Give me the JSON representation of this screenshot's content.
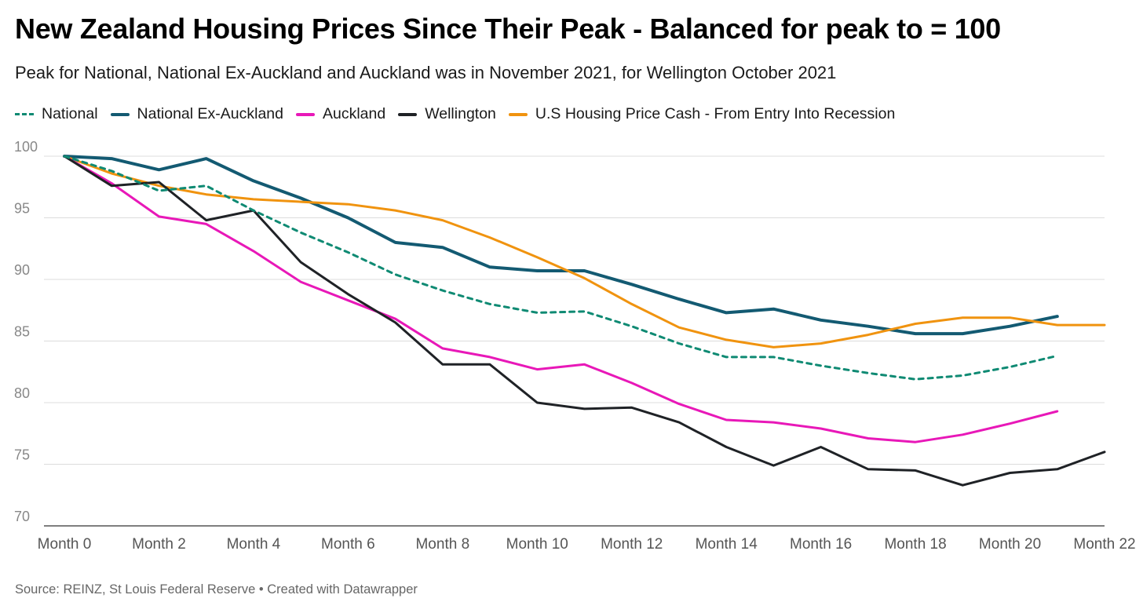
{
  "title": "New Zealand Housing Prices Since Their Peak - Balanced for peak to = 100",
  "subtitle": "Peak for National, National Ex-Auckland and Auckland was in November 2021, for Wellington October 2021",
  "source": "Source: REINZ, St Louis Federal Reserve • Created with Datawrapper",
  "chart_data": {
    "type": "line",
    "ylim": [
      70,
      100
    ],
    "xlim": [
      0,
      22
    ],
    "y_ticks": [
      100,
      95,
      90,
      85,
      80,
      75,
      70
    ],
    "x_ticks": [
      {
        "x": 0,
        "label": "Month 0"
      },
      {
        "x": 2,
        "label": "Month 2"
      },
      {
        "x": 4,
        "label": "Month 4"
      },
      {
        "x": 6,
        "label": "Month 6"
      },
      {
        "x": 8,
        "label": "Month 8"
      },
      {
        "x": 10,
        "label": "Month 10"
      },
      {
        "x": 12,
        "label": "Month 12"
      },
      {
        "x": 14,
        "label": "Month 14"
      },
      {
        "x": 16,
        "label": "Month 16"
      },
      {
        "x": 18,
        "label": "Month 18"
      },
      {
        "x": 20,
        "label": "Month 20"
      },
      {
        "x": 22,
        "label": "Month 22"
      }
    ],
    "grid": true,
    "legend": "top-left",
    "series": [
      {
        "name": "National",
        "color": "#0f8a73",
        "dashed": true,
        "width": 3,
        "x": [
          0,
          1,
          2,
          3,
          4,
          5,
          6,
          7,
          8,
          9,
          10,
          11,
          12,
          13,
          14,
          15,
          16,
          17,
          18,
          19,
          20,
          21
        ],
        "values": [
          100,
          98.8,
          97.2,
          97.6,
          95.6,
          93.8,
          92.2,
          90.4,
          89.1,
          88.0,
          87.3,
          87.4,
          86.2,
          84.8,
          83.7,
          83.7,
          83.0,
          82.4,
          81.9,
          82.2,
          82.9,
          83.8
        ]
      },
      {
        "name": "National Ex-Auckland",
        "color": "#135a72",
        "dashed": false,
        "width": 4,
        "x": [
          0,
          1,
          2,
          3,
          4,
          5,
          6,
          7,
          8,
          9,
          10,
          11,
          12,
          13,
          14,
          15,
          16,
          17,
          18,
          19,
          20,
          21
        ],
        "values": [
          100,
          99.8,
          98.9,
          99.8,
          98.0,
          96.6,
          95.0,
          93.0,
          92.6,
          91.0,
          90.7,
          90.7,
          89.6,
          88.4,
          87.3,
          87.6,
          86.7,
          86.2,
          85.6,
          85.6,
          86.2,
          87.0
        ]
      },
      {
        "name": "Auckland",
        "color": "#e818b8",
        "dashed": false,
        "width": 3,
        "x": [
          0,
          1,
          2,
          3,
          4,
          5,
          6,
          7,
          8,
          9,
          10,
          11,
          12,
          13,
          14,
          15,
          16,
          17,
          18,
          19,
          20,
          21
        ],
        "values": [
          100,
          97.8,
          95.1,
          94.5,
          92.3,
          89.8,
          88.3,
          86.8,
          84.4,
          83.7,
          82.7,
          83.1,
          81.6,
          79.9,
          78.6,
          78.4,
          77.9,
          77.1,
          76.8,
          77.4,
          78.3,
          79.3
        ]
      },
      {
        "name": "Wellington",
        "color": "#1f2226",
        "dashed": false,
        "width": 3,
        "x": [
          0,
          1,
          2,
          3,
          4,
          5,
          6,
          7,
          8,
          9,
          10,
          11,
          12,
          13,
          14,
          15,
          16,
          17,
          18,
          19,
          20,
          21,
          22
        ],
        "values": [
          100,
          97.6,
          97.9,
          94.8,
          95.6,
          91.4,
          88.8,
          86.5,
          83.1,
          83.1,
          80.0,
          79.5,
          79.6,
          78.4,
          76.4,
          74.9,
          76.4,
          74.6,
          74.5,
          73.3,
          74.3,
          74.6,
          76.0
        ]
      },
      {
        "name": "U.S Housing Price Cash - From Entry Into Recession",
        "color": "#f0930f",
        "dashed": false,
        "width": 3,
        "x": [
          0,
          1,
          2,
          3,
          4,
          5,
          6,
          7,
          8,
          9,
          10,
          11,
          12,
          13,
          14,
          15,
          16,
          17,
          18,
          19,
          20,
          21,
          22
        ],
        "values": [
          100,
          98.6,
          97.6,
          96.9,
          96.5,
          96.3,
          96.1,
          95.6,
          94.8,
          93.4,
          91.8,
          90.1,
          88.0,
          86.1,
          85.1,
          84.5,
          84.8,
          85.5,
          86.4,
          86.9,
          86.9,
          86.3,
          86.3
        ]
      }
    ]
  }
}
